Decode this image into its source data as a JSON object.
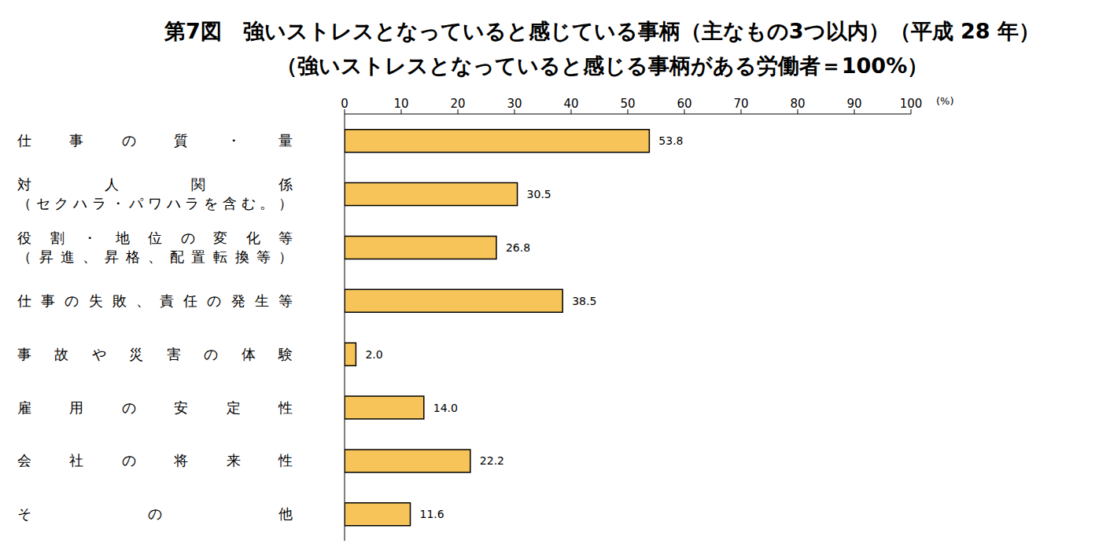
{
  "chart_data": {
    "type": "bar",
    "orientation": "horizontal",
    "title": "第7図　強いストレスとなっていると感じている事柄（主なもの3つ以内）（平成 28 年）",
    "subtitle": "（強いストレスとなっていると感じる事柄がある労働者＝100%）",
    "xlabel": "(%)",
    "categories": [
      "仕事の質・量",
      "対人関係（セクハラ・パワハラを含む。）",
      "役割・地位の変化等（昇進、昇格、配置転換等）",
      "仕事の失敗、責任の発生等",
      "事故や災害の体験",
      "雇用の安定性",
      "会社の将来性",
      "その他"
    ],
    "values": [
      53.8,
      30.5,
      26.8,
      38.5,
      2.0,
      14.0,
      22.2,
      11.6
    ],
    "value_labels": [
      "53.8",
      "30.5",
      "26.8",
      "38.5",
      "2.0",
      "14.0",
      "22.2",
      "11.6"
    ],
    "data_labels": true,
    "color": "#f7c45a",
    "xlim": [
      0,
      100
    ],
    "xticks": [
      0,
      10,
      20,
      30,
      40,
      50,
      60,
      70,
      80,
      90,
      100
    ],
    "grid": false
  }
}
